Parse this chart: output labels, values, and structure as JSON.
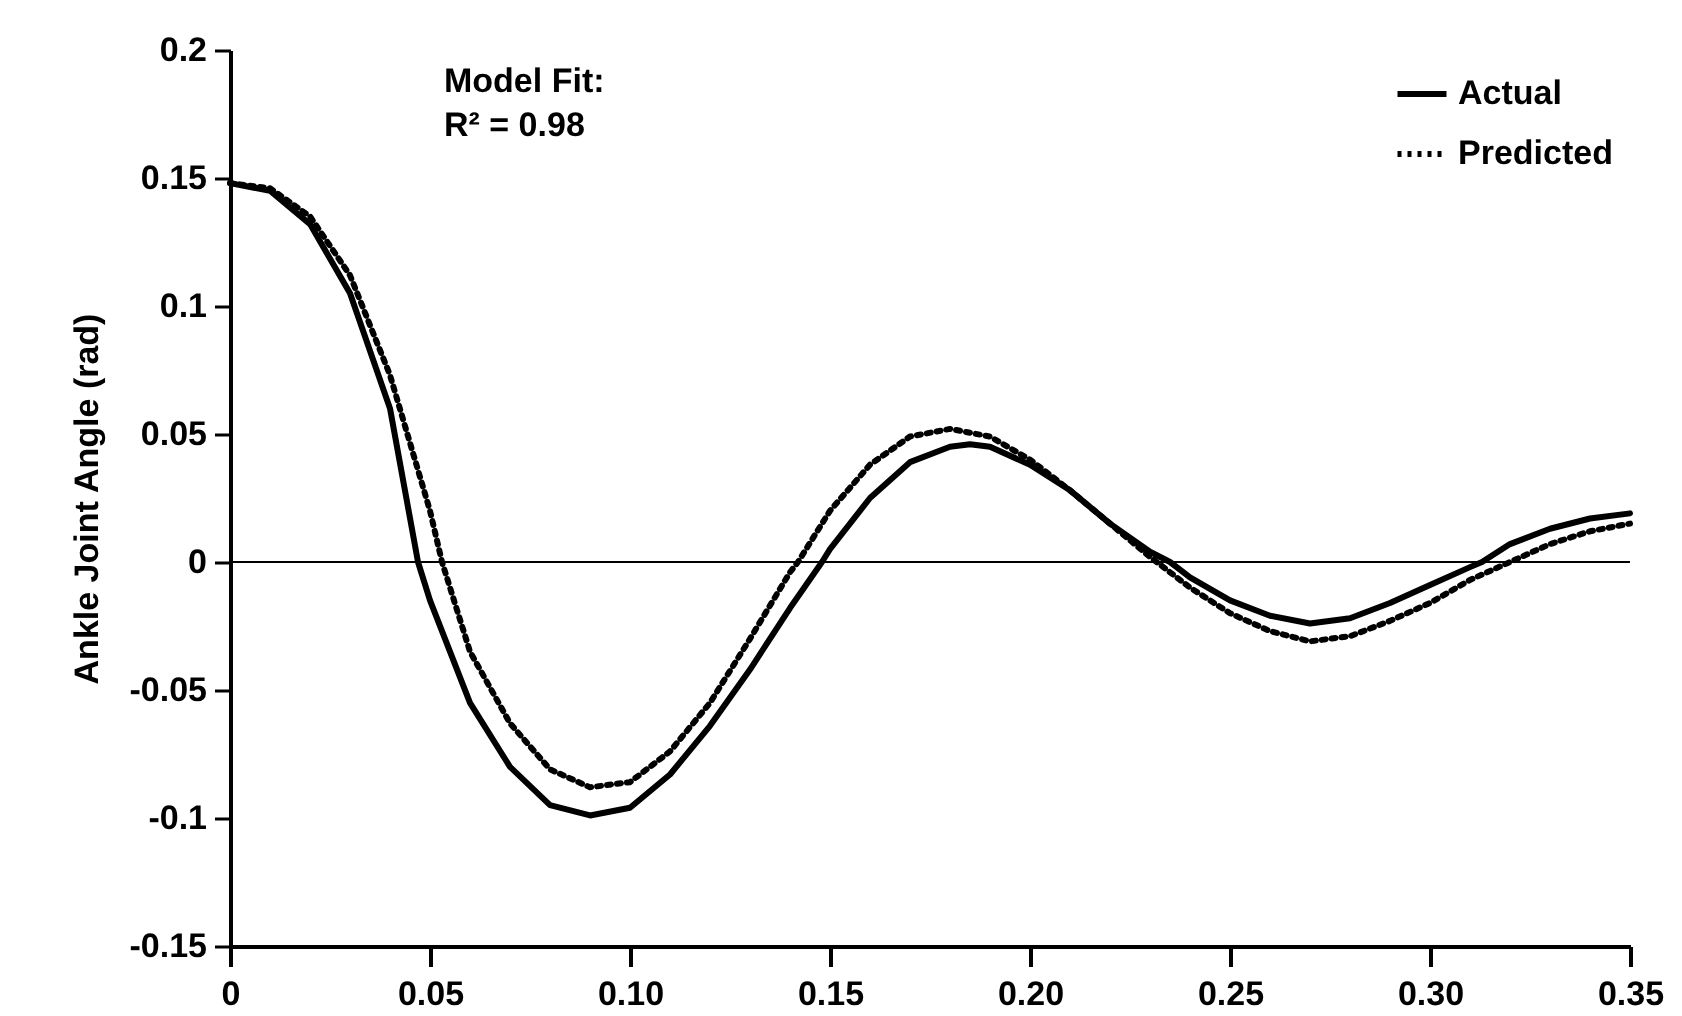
{
  "chart_data": {
    "type": "line",
    "ylabel": "Ankle Joint Angle (rad)",
    "annotations": [
      "Model Fit:",
      "R² = 0.98"
    ],
    "legend": "top right",
    "xlim": [
      0,
      0.35
    ],
    "ylim": [
      -0.15,
      0.2
    ],
    "xticks": [
      0,
      0.05,
      {
        "value": 0.1,
        "label": "0.10"
      },
      0.15,
      {
        "value": 0.2,
        "label": "0.20"
      },
      0.25,
      {
        "value": 0.3,
        "label": "0.30"
      },
      0.35
    ],
    "yticks": [
      -0.15,
      -0.1,
      -0.05,
      0,
      0.05,
      0.1,
      0.15,
      0.2
    ],
    "ref_lines": [
      {
        "axis": "y",
        "value": 0
      }
    ],
    "series": [
      {
        "name": "Actual",
        "color": "#000000",
        "line_style": "solid",
        "x": [
          0,
          0.01,
          0.02,
          0.03,
          0.04,
          0.047,
          0.05,
          0.06,
          0.07,
          0.08,
          0.09,
          0.1,
          0.11,
          0.12,
          0.13,
          0.14,
          0.148,
          0.15,
          0.16,
          0.17,
          0.18,
          0.185,
          0.19,
          0.2,
          0.21,
          0.22,
          0.23,
          0.235,
          0.24,
          0.25,
          0.26,
          0.27,
          0.28,
          0.29,
          0.3,
          0.31,
          0.313,
          0.32,
          0.33,
          0.34,
          0.35
        ],
        "values": [
          0.148,
          0.145,
          0.132,
          0.105,
          0.06,
          0,
          -0.015,
          -0.055,
          -0.08,
          -0.095,
          -0.099,
          -0.096,
          -0.083,
          -0.064,
          -0.042,
          -0.018,
          0,
          0.005,
          0.025,
          0.039,
          0.045,
          0.046,
          0.045,
          0.038,
          0.028,
          0.015,
          0.004,
          0,
          -0.006,
          -0.015,
          -0.021,
          -0.024,
          -0.022,
          -0.016,
          -0.009,
          -0.002,
          0,
          0.007,
          0.013,
          0.017,
          0.019
        ]
      },
      {
        "name": "Predicted",
        "color": "#000000",
        "line_style": "dotted",
        "x": [
          0,
          0.01,
          0.02,
          0.03,
          0.04,
          0.05,
          0.053,
          0.06,
          0.07,
          0.08,
          0.09,
          0.1,
          0.11,
          0.12,
          0.13,
          0.14,
          0.142,
          0.15,
          0.16,
          0.17,
          0.18,
          0.19,
          0.2,
          0.21,
          0.22,
          0.23,
          0.24,
          0.25,
          0.26,
          0.27,
          0.28,
          0.29,
          0.3,
          0.31,
          0.32,
          0.33,
          0.34,
          0.35
        ],
        "values": [
          0.148,
          0.146,
          0.135,
          0.112,
          0.073,
          0.02,
          0,
          -0.035,
          -0.063,
          -0.081,
          -0.088,
          -0.086,
          -0.074,
          -0.055,
          -0.03,
          -0.004,
          0,
          0.02,
          0.038,
          0.049,
          0.052,
          0.049,
          0.04,
          0.028,
          0.015,
          0.002,
          -0.01,
          -0.02,
          -0.027,
          -0.031,
          -0.029,
          -0.023,
          -0.016,
          -0.007,
          0,
          0.007,
          0.012,
          0.015
        ]
      }
    ]
  }
}
